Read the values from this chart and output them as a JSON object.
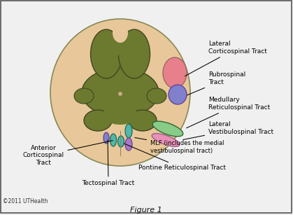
{
  "bg_color": "#f0f0f0",
  "border_color": "#555555",
  "outer_cord_color": "#e8c89a",
  "gray_matter_color": "#6b7a2e",
  "canal_color": "#d4b080",
  "title": "Figure 1",
  "copyright": "©2011 UTHealth",
  "labels": {
    "lateral_corticospinal": "Lateral\nCorticospinal Tract",
    "rubrospinal": "Rubrospinal\nTract",
    "medullary_reticulospinal": "Medullary\nReticulospinal Tract",
    "lateral_vestibulospinal": "Lateral\nVestibulospinal Tract",
    "mlf": "MLF (includes the medial\nvestibulospinal tract)",
    "pontine_reticulospinal": "Pontine Reticulospinal Tract",
    "anterior_corticospinal": "Anterior\nCorticospinal\nTract",
    "tectospinal": "Tectospinal Tract"
  },
  "tract_colors": {
    "lateral_corticospinal": "#e8808c",
    "rubrospinal": "#8080cc",
    "medullary_reticulospinal": "#88cc88",
    "lateral_vestibulospinal": "#e890b8",
    "mlf_teal": "#50b8a8",
    "mlf_violet": "#a878c8",
    "pontine_reticulospinal": "#50b8a8",
    "anterior_corticospinal": "#50b8a8",
    "tectospinal": "#8080cc"
  }
}
